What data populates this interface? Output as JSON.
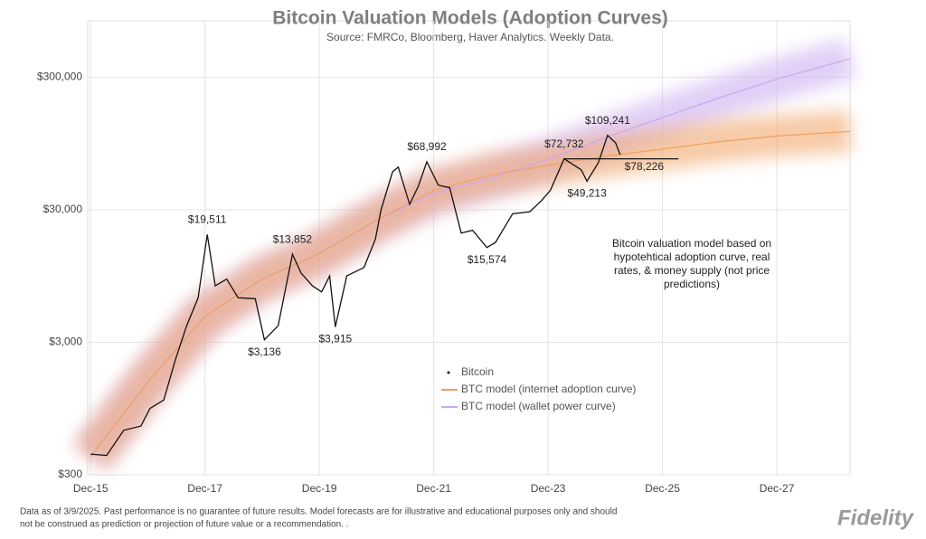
{
  "chart_data": {
    "type": "line",
    "title": "Bitcoin Valuation Models (Adoption Curves)",
    "subtitle": "Source: FMRCo, Bloomberg, Haver Analytics. Weekly Data.",
    "log_scale": true,
    "grid": true,
    "legend": "bottom-center",
    "xlim": [
      2015.87,
      2029.2
    ],
    "xticks": [
      {
        "value": 2015.92,
        "label": "Dec-15"
      },
      {
        "value": 2017.92,
        "label": "Dec-17"
      },
      {
        "value": 2019.92,
        "label": "Dec-19"
      },
      {
        "value": 2021.92,
        "label": "Dec-21"
      },
      {
        "value": 2023.92,
        "label": "Dec-23"
      },
      {
        "value": 2025.92,
        "label": "Dec-25"
      },
      {
        "value": 2027.92,
        "label": "Dec-27"
      }
    ],
    "ylim": [
      300,
      800000
    ],
    "yticks": [
      {
        "value": 300,
        "label": "$300"
      },
      {
        "value": 3000,
        "label": "$3,000"
      },
      {
        "value": 30000,
        "label": "$30,000"
      },
      {
        "value": 300000,
        "label": "$300,000"
      }
    ],
    "series": [
      {
        "name": "Bitcoin",
        "color": "#111111",
        "x": [
          2015.92,
          2016.2,
          2016.5,
          2016.8,
          2016.96,
          2017.2,
          2017.4,
          2017.6,
          2017.8,
          2017.96,
          2018.05,
          2018.1,
          2018.3,
          2018.5,
          2018.8,
          2018.96,
          2019.2,
          2019.45,
          2019.6,
          2019.8,
          2019.96,
          2020.1,
          2020.2,
          2020.4,
          2020.7,
          2020.9,
          2021.0,
          2021.2,
          2021.3,
          2021.5,
          2021.65,
          2021.8,
          2022.0,
          2022.2,
          2022.4,
          2022.6,
          2022.85,
          2023.0,
          2023.3,
          2023.6,
          2023.8,
          2023.96,
          2024.2,
          2024.5,
          2024.6,
          2024.8,
          2024.96,
          2025.1,
          2025.18
        ],
        "values": [
          430,
          420,
          650,
          700,
          950,
          1100,
          2200,
          4000,
          6500,
          19511,
          11000,
          8000,
          9000,
          6500,
          6400,
          3136,
          4000,
          13852,
          10000,
          8000,
          7200,
          9500,
          3915,
          9500,
          11000,
          18000,
          30000,
          58000,
          63000,
          33000,
          45000,
          68992,
          46000,
          44000,
          20000,
          21000,
          15574,
          17000,
          28000,
          29000,
          35000,
          42000,
          72732,
          60000,
          49213,
          68000,
          109241,
          96000,
          78226
        ]
      },
      {
        "name": "BTC model (internet adoption curve)",
        "color": "#f0a060",
        "x": [
          2015.92,
          2016.92,
          2017.92,
          2018.92,
          2019.92,
          2020.92,
          2021.92,
          2022.92,
          2023.92,
          2024.92,
          2025.92,
          2026.92,
          2027.92,
          2029.2
        ],
        "values": [
          410,
          1500,
          4700,
          9000,
          14000,
          25000,
          42000,
          55000,
          65000,
          76000,
          86000,
          98000,
          108000,
          117000
        ]
      },
      {
        "name": "BTC model (wallet power curve)",
        "color": "#c9a8f0",
        "x": [
          2015.92,
          2016.92,
          2017.92,
          2018.92,
          2019.92,
          2020.92,
          2021.92,
          2022.92,
          2023.92,
          2024.92,
          2025.92,
          2026.92,
          2027.92,
          2029.2
        ],
        "values": [
          410,
          1500,
          4700,
          9000,
          14000,
          25000,
          40000,
          52000,
          72000,
          105000,
          149000,
          210000,
          290000,
          414000
        ]
      }
    ],
    "annotations": [
      {
        "label": "$19,511",
        "value": 19511,
        "x": 2017.96,
        "side": "above"
      },
      {
        "label": "$3,136",
        "value": 3136,
        "x": 2018.96,
        "side": "below"
      },
      {
        "label": "$13,852",
        "value": 13852,
        "x": 2019.45,
        "side": "above"
      },
      {
        "label": "$3,915",
        "value": 3915,
        "x": 2020.2,
        "side": "below"
      },
      {
        "label": "$68,992",
        "value": 68992,
        "x": 2021.8,
        "side": "above"
      },
      {
        "label": "$15,574",
        "value": 15574,
        "x": 2022.85,
        "side": "below"
      },
      {
        "label": "$72,732",
        "value": 72732,
        "x": 2024.2,
        "side": "above"
      },
      {
        "label": "$49,213",
        "value": 49213,
        "x": 2024.6,
        "side": "below"
      },
      {
        "label": "$109,241",
        "value": 109241,
        "x": 2024.96,
        "side": "above"
      },
      {
        "label": "$78,226",
        "value": 78226,
        "x": 2025.6,
        "side": "below"
      }
    ],
    "reference_line": {
      "value": 72732,
      "x": [
        2024.2,
        2026.2
      ]
    },
    "note": [
      "Bitcoin valuation model based on",
      "hypotehtical adoption curve, real",
      "rates, & money supply  (not price",
      "predictions)"
    ]
  },
  "footer": {
    "disclaimer": [
      "Data as of 3/9/2025. Past performance is no guarantee of future results. Model forecasts are for illustrative and educational purposes only and should",
      "not be construed as prediction or projection of future value or a recommendation. ."
    ],
    "logo": "Fidelity"
  }
}
